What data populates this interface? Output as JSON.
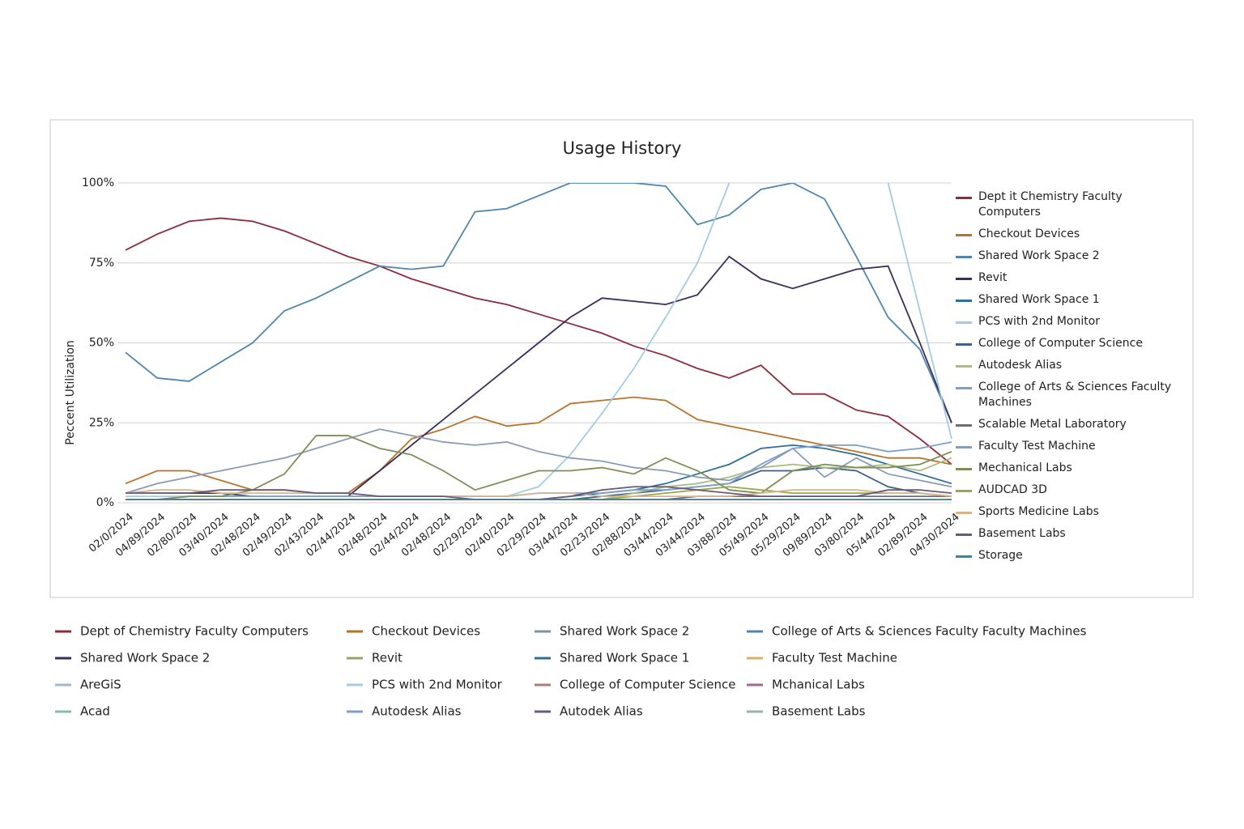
{
  "chart_data": {
    "type": "line",
    "title": "Usage History",
    "y_label": "Peccent Utilization",
    "ylim": [
      0,
      100
    ],
    "yticks": [
      {
        "value": 0,
        "label": "0%"
      },
      {
        "value": 25,
        "label": "25%"
      },
      {
        "value": 50,
        "label": "50%"
      },
      {
        "value": 75,
        "label": "75%"
      },
      {
        "value": 100,
        "label": "100%"
      }
    ],
    "grid": true,
    "legend": "right",
    "categories": [
      "02/0/2024",
      "04/89/2024",
      "02/80/2024",
      "03/40/2024",
      "02/48/2024",
      "02/49/2024",
      "02/43/2024",
      "02/44/2024",
      "02/48/2024",
      "02/44/2024",
      "02/48/2024",
      "02/29/2024",
      "02/40/2024",
      "02/29/2024",
      "03/44/2024",
      "02/23/2024",
      "02/88/2024",
      "03/44/2024",
      "03/44/2024",
      "03/88/2024",
      "05/49/2024",
      "05/29/2024",
      "09/89/2024",
      "03/80/2024",
      "05/44/2024",
      "02/89/2024",
      "04/30/2024"
    ],
    "series": [
      {
        "name": "Dept it Chemistry Faculty Computers",
        "color": "#8e2a3a",
        "values": [
          79,
          84,
          88,
          89,
          88,
          85,
          81,
          77,
          74,
          70,
          67,
          64,
          62,
          59,
          56,
          53,
          49,
          46,
          42,
          39,
          43,
          34,
          34,
          29,
          27,
          20,
          12
        ]
      },
      {
        "name": "Checkout Devices",
        "color": "#b8732a",
        "values": [
          6,
          10,
          10,
          7,
          4,
          4,
          3,
          3,
          10,
          20,
          23,
          27,
          24,
          25,
          31,
          32,
          33,
          32,
          26,
          24,
          22,
          20,
          18,
          16,
          14,
          14,
          12
        ]
      },
      {
        "name": "Shared Work Space 2",
        "color": "#4f86b0",
        "values": [
          47,
          39,
          38,
          44,
          50,
          60,
          64,
          69,
          74,
          73,
          74,
          91,
          92,
          96,
          100,
          100,
          100,
          99,
          87,
          90,
          98,
          100,
          95,
          77,
          58,
          48,
          25
        ]
      },
      {
        "name": "Revit",
        "color": "#3b2d5c",
        "values": [
          3,
          3,
          3,
          3,
          2,
          2,
          2,
          2,
          10,
          18,
          26,
          34,
          42,
          50,
          58,
          64,
          63,
          62,
          65,
          77,
          70,
          67,
          70,
          73,
          74,
          50,
          25
        ]
      },
      {
        "name": "Shared Work Space 1",
        "color": "#2f6f97",
        "values": [
          1,
          1,
          1,
          1,
          1,
          1,
          1,
          1,
          1,
          1,
          1,
          1,
          1,
          1,
          2,
          3,
          4,
          6,
          9,
          12,
          17,
          18,
          17,
          15,
          12,
          9,
          6
        ]
      },
      {
        "name": "PCS with 2nd Monitor",
        "color": "#a3cbe3",
        "values": [
          2,
          2,
          2,
          2,
          2,
          2,
          2,
          2,
          2,
          2,
          2,
          2,
          2,
          5,
          15,
          28,
          42,
          58,
          75,
          100,
          null,
          null,
          null,
          null,
          100,
          60,
          20
        ]
      },
      {
        "name": "College of Computer Science",
        "color": "#3d5f8a",
        "values": [
          1,
          1,
          1,
          1,
          1,
          1,
          1,
          1,
          1,
          1,
          1,
          1,
          1,
          1,
          1,
          2,
          3,
          4,
          5,
          6,
          10,
          10,
          11,
          10,
          5,
          3,
          2
        ]
      },
      {
        "name": "Autodesk Alias",
        "color": "#a9bd7e",
        "values": [
          1,
          1,
          1,
          1,
          1,
          1,
          1,
          1,
          1,
          1,
          1,
          1,
          1,
          1,
          1,
          1,
          3,
          5,
          6,
          8,
          11,
          12,
          11,
          11,
          12,
          10,
          14
        ]
      },
      {
        "name": "College of Arts & Sciences Faculty Machines",
        "color": "#8a9bb8",
        "values": [
          3,
          6,
          8,
          10,
          12,
          14,
          17,
          20,
          23,
          21,
          19,
          18,
          19,
          16,
          14,
          13,
          11,
          10,
          8,
          7,
          11,
          17,
          8,
          14,
          9,
          7,
          5
        ]
      },
      {
        "name": "Scalable Metal Laboratory",
        "color": "#6f6f6f",
        "values": [
          1,
          1,
          1,
          1,
          1,
          1,
          1,
          1,
          1,
          1,
          1,
          1,
          1,
          1,
          1,
          1,
          1,
          1,
          2,
          2,
          2,
          2,
          2,
          2,
          2,
          2,
          2
        ]
      },
      {
        "name": "Faculty Test Machine",
        "color": "#7f9fc9",
        "values": [
          1,
          1,
          2,
          2,
          2,
          2,
          2,
          2,
          2,
          2,
          2,
          2,
          2,
          3,
          3,
          3,
          4,
          4,
          5,
          6,
          12,
          17,
          18,
          18,
          16,
          17,
          19
        ]
      },
      {
        "name": "Mechanical Labs",
        "color": "#7e8f55",
        "values": [
          1,
          1,
          2,
          2,
          4,
          9,
          21,
          21,
          17,
          15,
          10,
          4,
          7,
          10,
          10,
          11,
          9,
          14,
          10,
          4,
          3,
          10,
          12,
          11,
          11,
          12,
          16
        ]
      },
      {
        "name": "AUDCAD 3D",
        "color": "#9aa84a",
        "values": [
          1,
          1,
          1,
          1,
          1,
          1,
          1,
          1,
          1,
          1,
          1,
          1,
          1,
          1,
          1,
          1,
          2,
          3,
          4,
          5,
          4,
          3,
          3,
          3,
          3,
          3,
          2
        ]
      },
      {
        "name": "Sports Medicine Labs",
        "color": "#d9b48a",
        "values": [
          3,
          4,
          4,
          3,
          3,
          3,
          3,
          3,
          2,
          2,
          2,
          2,
          2,
          3,
          3,
          2,
          2,
          2,
          2,
          2,
          3,
          4,
          4,
          4,
          3,
          3,
          2
        ]
      },
      {
        "name": "Basement Labs",
        "color": "#6b5b7a",
        "values": [
          3,
          3,
          3,
          4,
          4,
          4,
          3,
          3,
          2,
          2,
          2,
          1,
          1,
          1,
          2,
          4,
          5,
          5,
          4,
          3,
          2,
          2,
          2,
          2,
          4,
          4,
          3
        ]
      },
      {
        "name": "Storage",
        "color": "#4f7f95",
        "values": [
          1,
          1,
          1,
          1,
          1,
          1,
          1,
          1,
          1,
          1,
          1,
          1,
          1,
          1,
          1,
          1,
          1,
          1,
          1,
          1,
          1,
          1,
          1,
          1,
          1,
          1,
          1
        ]
      }
    ],
    "bottom_legend": [
      {
        "name": "Dept of Chemistry Faculty Computers",
        "color": "#8e2a3a"
      },
      {
        "name": "Checkout Devices",
        "color": "#b8732a"
      },
      {
        "name": "Shared Work Space 2",
        "color": "#7b93a8"
      },
      {
        "name": "College of Arts & Sciences Faculty Faculty Machines",
        "color": "#4f86b0"
      },
      {
        "name": "Shared Work Space 2",
        "color": "#3b2d5c"
      },
      {
        "name": "Revit",
        "color": "#9aa06a"
      },
      {
        "name": "Shared Work Space 1",
        "color": "#2f6f97"
      },
      {
        "name": "Faculty Test Machine",
        "color": "#d9b060"
      },
      {
        "name": "AreGiS",
        "color": "#9dbcc9"
      },
      {
        "name": "PCS with 2nd Monitor",
        "color": "#a3cbe3"
      },
      {
        "name": "College of Computer Science",
        "color": "#b07a7a"
      },
      {
        "name": "Mchanical Labs",
        "color": "#a06a8a"
      },
      {
        "name": "Acad",
        "color": "#88b8b0"
      },
      {
        "name": "Autodesk Alias",
        "color": "#7f9fc9"
      },
      {
        "name": "Autodek Alias",
        "color": "#6b5b8a"
      },
      {
        "name": "Basement Labs",
        "color": "#9ab0b0"
      }
    ]
  }
}
